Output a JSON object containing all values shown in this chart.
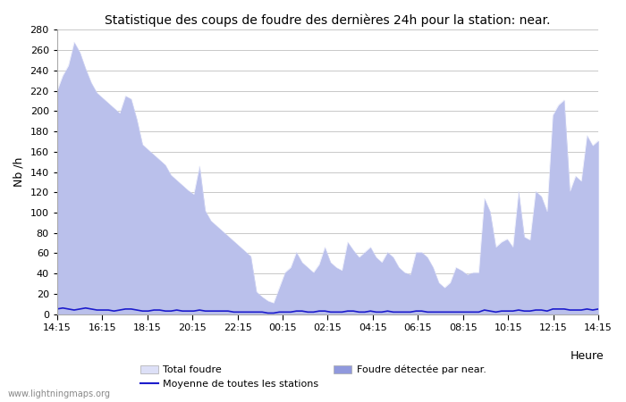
{
  "title": "Statistique des coups de foudre des dernières 24h pour la station: near.",
  "xlabel": "Heure",
  "ylabel": "Nb /h",
  "ylim": [
    0,
    280
  ],
  "yticks": [
    0,
    20,
    40,
    60,
    80,
    100,
    120,
    140,
    160,
    180,
    200,
    220,
    240,
    260,
    280
  ],
  "xtick_labels": [
    "14:15",
    "16:15",
    "18:15",
    "20:15",
    "22:15",
    "00:15",
    "02:15",
    "04:15",
    "06:15",
    "08:15",
    "10:15",
    "12:15",
    "14:15"
  ],
  "background_color": "#ffffff",
  "plot_bg_color": "#ffffff",
  "grid_color": "#c8c8c8",
  "total_color": "#dde0f7",
  "near_color": "#9099dd",
  "avg_color": "#1c1ccc",
  "watermark": "www.lightningmaps.org",
  "legend_total": "Total foudre",
  "legend_avg": "Moyenne de toutes les stations",
  "legend_near": "Foudre détectée par near.",
  "total_values": [
    220,
    235,
    245,
    268,
    258,
    242,
    228,
    218,
    213,
    208,
    203,
    198,
    215,
    212,
    192,
    167,
    162,
    157,
    152,
    147,
    137,
    132,
    127,
    122,
    118,
    146,
    102,
    92,
    87,
    82,
    77,
    72,
    67,
    62,
    57,
    22,
    17,
    13,
    11,
    26,
    41,
    46,
    61,
    51,
    46,
    41,
    49,
    66,
    51,
    46,
    43,
    71,
    63,
    56,
    61,
    66,
    56,
    51,
    61,
    56,
    46,
    41,
    39,
    61,
    61,
    56,
    46,
    31,
    26,
    31,
    46,
    43,
    39,
    41,
    41,
    114,
    101,
    66,
    71,
    74,
    66,
    121,
    76,
    73,
    121,
    116,
    101,
    196,
    206,
    211,
    121,
    136,
    131,
    176,
    166,
    171
  ],
  "near_values": [
    220,
    235,
    245,
    268,
    258,
    242,
    228,
    218,
    213,
    208,
    203,
    198,
    215,
    212,
    192,
    167,
    162,
    157,
    152,
    147,
    137,
    132,
    127,
    122,
    118,
    146,
    102,
    92,
    87,
    82,
    77,
    72,
    67,
    62,
    57,
    22,
    17,
    13,
    11,
    26,
    41,
    46,
    61,
    51,
    46,
    41,
    49,
    66,
    51,
    46,
    43,
    71,
    63,
    56,
    61,
    66,
    56,
    51,
    61,
    56,
    46,
    41,
    39,
    61,
    61,
    56,
    46,
    31,
    26,
    31,
    46,
    43,
    39,
    41,
    41,
    114,
    101,
    66,
    71,
    74,
    66,
    121,
    76,
    73,
    121,
    116,
    101,
    196,
    206,
    211,
    121,
    136,
    131,
    176,
    166,
    171
  ],
  "avg_values": [
    5,
    6,
    5,
    4,
    5,
    6,
    5,
    4,
    4,
    4,
    3,
    4,
    5,
    5,
    4,
    3,
    3,
    4,
    4,
    3,
    3,
    4,
    3,
    3,
    3,
    4,
    3,
    3,
    3,
    3,
    3,
    2,
    2,
    2,
    2,
    2,
    2,
    1,
    1,
    2,
    2,
    2,
    3,
    3,
    2,
    2,
    3,
    3,
    2,
    2,
    2,
    3,
    3,
    2,
    2,
    3,
    2,
    2,
    3,
    2,
    2,
    2,
    2,
    3,
    3,
    2,
    2,
    2,
    2,
    2,
    2,
    2,
    2,
    2,
    2,
    4,
    3,
    2,
    3,
    3,
    3,
    4,
    3,
    3,
    4,
    4,
    3,
    5,
    5,
    5,
    4,
    4,
    4,
    5,
    4,
    5
  ]
}
